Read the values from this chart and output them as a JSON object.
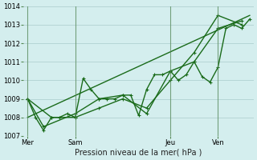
{
  "bg_color": "#d4eeee",
  "grid_color": "#aacccc",
  "line_color": "#1a6b1a",
  "ylim": [
    1007,
    1014
  ],
  "yticks": [
    1007,
    1008,
    1009,
    1010,
    1011,
    1012,
    1013,
    1014
  ],
  "xlabel": "Pression niveau de la mer( hPa )",
  "day_labels": [
    "Mer",
    "Sam",
    "Jeu",
    "Ven"
  ],
  "day_positions": [
    0,
    6,
    18,
    24
  ],
  "vline_positions": [
    0,
    6,
    18,
    24
  ],
  "series1": {
    "x": [
      0,
      1,
      2,
      3,
      4,
      5,
      6,
      7,
      8,
      9,
      10,
      11,
      12,
      13,
      14,
      15,
      16,
      17,
      18,
      19,
      20,
      21,
      22,
      23,
      24,
      25,
      26,
      27,
      28
    ],
    "y": [
      1009,
      1008,
      1007.3,
      1008,
      1008,
      1008.2,
      1008,
      1010.1,
      1009.5,
      1009,
      1009,
      1009,
      1009.2,
      1009.2,
      1008.1,
      1009.5,
      1010.3,
      1010.3,
      1010.5,
      1010,
      1010.3,
      1011.0,
      1010.2,
      1009.9,
      1010.7,
      1012.8,
      1013,
      1012.8,
      1013.3
    ]
  },
  "series2": {
    "x": [
      0,
      2,
      6,
      9,
      12,
      15,
      18,
      21,
      24,
      27
    ],
    "y": [
      1009,
      1007.5,
      1008.2,
      1009,
      1009.2,
      1008.2,
      1010.5,
      1011.0,
      1012.8,
      1013.2
    ]
  },
  "series3": {
    "x": [
      0,
      3,
      6,
      9,
      12,
      15,
      18,
      21,
      24,
      27
    ],
    "y": [
      1009,
      1008,
      1008,
      1008.5,
      1009,
      1008.5,
      1010,
      1011.5,
      1013.5,
      1013.0
    ]
  },
  "trend_line": {
    "x": [
      0,
      28
    ],
    "y": [
      1008,
      1013.5
    ]
  }
}
